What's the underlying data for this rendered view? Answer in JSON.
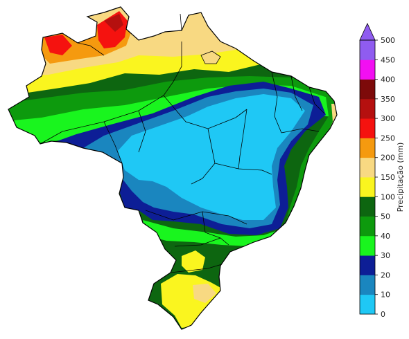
{
  "colorbar": {
    "label": "Precipitação (mm)",
    "ticks": [
      "0",
      "10",
      "20",
      "30",
      "40",
      "50",
      "100",
      "150",
      "200",
      "250",
      "300",
      "350",
      "400",
      "450",
      "500"
    ],
    "bins": [
      {
        "from": 0,
        "to": 10,
        "color": "#1fc8f5"
      },
      {
        "from": 10,
        "to": 20,
        "color": "#1a86bf"
      },
      {
        "from": 20,
        "to": 30,
        "color": "#0d1e96"
      },
      {
        "from": 30,
        "to": 40,
        "color": "#19f51e"
      },
      {
        "from": 40,
        "to": 50,
        "color": "#0d9a0d"
      },
      {
        "from": 50,
        "to": 100,
        "color": "#0d6610"
      },
      {
        "from": 100,
        "to": 150,
        "color": "#faf51f"
      },
      {
        "from": 150,
        "to": 200,
        "color": "#f8d982"
      },
      {
        "from": 200,
        "to": 250,
        "color": "#f59a0f"
      },
      {
        "from": 250,
        "to": 300,
        "color": "#f5120f"
      },
      {
        "from": 300,
        "to": 350,
        "color": "#b5100f"
      },
      {
        "from": 350,
        "to": 400,
        "color": "#7d0a0a"
      },
      {
        "from": 400,
        "to": 450,
        "color": "#f20ff2"
      },
      {
        "from": 450,
        "to": 500,
        "color": "#8f5cf0"
      }
    ],
    "extend": "max"
  }
}
